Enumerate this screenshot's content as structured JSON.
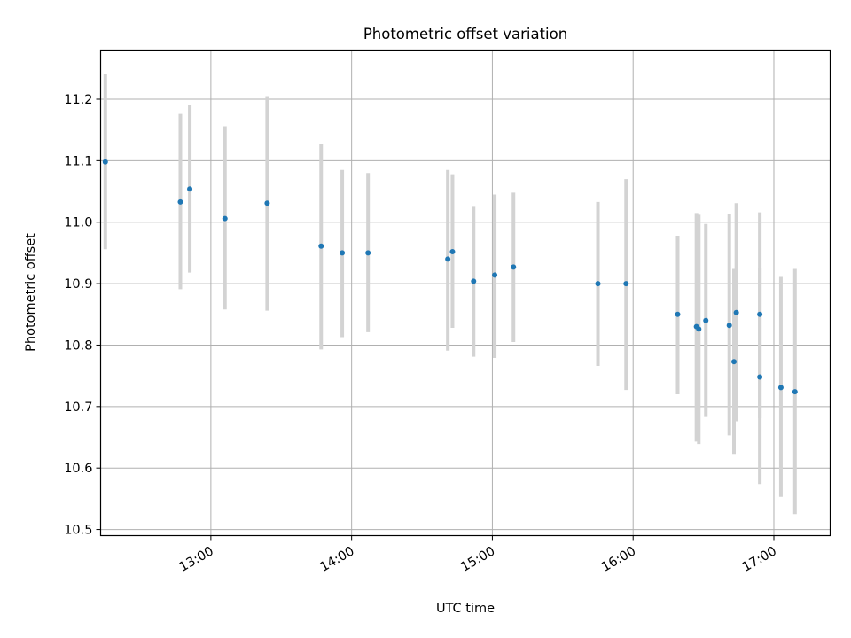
{
  "chart_data": {
    "type": "scatter",
    "title": "Photometric offset variation",
    "xlabel": "UTC time",
    "ylabel": "Photometric offset",
    "x_unit": "UTC time (HH:MM)",
    "xlim": [
      "12:13",
      "17:24"
    ],
    "ylim": [
      10.49,
      11.28
    ],
    "x_ticks": [
      "13:00",
      "14:00",
      "15:00",
      "16:00",
      "17:00"
    ],
    "y_ticks": [
      10.5,
      10.6,
      10.7,
      10.8,
      10.9,
      11.0,
      11.1,
      11.2
    ],
    "grid": true,
    "legend": false,
    "marker_color": "#1f77b4",
    "errorbar_color": "#d3d3d3",
    "points": [
      {
        "x": "12:15",
        "y": 11.098,
        "ylow": 10.956,
        "yhigh": 11.241
      },
      {
        "x": "12:47",
        "y": 11.033,
        "ylow": 10.891,
        "yhigh": 11.176
      },
      {
        "x": "12:51",
        "y": 11.054,
        "ylow": 10.918,
        "yhigh": 11.19
      },
      {
        "x": "13:06",
        "y": 11.006,
        "ylow": 10.858,
        "yhigh": 11.156
      },
      {
        "x": "13:24",
        "y": 11.031,
        "ylow": 10.856,
        "yhigh": 11.205
      },
      {
        "x": "13:47",
        "y": 10.961,
        "ylow": 10.793,
        "yhigh": 11.127
      },
      {
        "x": "13:56",
        "y": 10.95,
        "ylow": 10.813,
        "yhigh": 11.085
      },
      {
        "x": "14:07",
        "y": 10.95,
        "ylow": 10.821,
        "yhigh": 11.08
      },
      {
        "x": "14:41",
        "y": 10.94,
        "ylow": 10.791,
        "yhigh": 11.085
      },
      {
        "x": "14:43",
        "y": 10.952,
        "ylow": 10.828,
        "yhigh": 11.078
      },
      {
        "x": "14:52",
        "y": 10.904,
        "ylow": 10.781,
        "yhigh": 11.025
      },
      {
        "x": "15:01",
        "y": 10.914,
        "ylow": 10.779,
        "yhigh": 11.045
      },
      {
        "x": "15:09",
        "y": 10.927,
        "ylow": 10.805,
        "yhigh": 11.048
      },
      {
        "x": "15:45",
        "y": 10.9,
        "ylow": 10.766,
        "yhigh": 11.033
      },
      {
        "x": "15:57",
        "y": 10.9,
        "ylow": 10.727,
        "yhigh": 11.07
      },
      {
        "x": "16:19",
        "y": 10.85,
        "ylow": 10.72,
        "yhigh": 10.978
      },
      {
        "x": "16:27",
        "y": 10.83,
        "ylow": 10.643,
        "yhigh": 11.015
      },
      {
        "x": "16:28",
        "y": 10.826,
        "ylow": 10.639,
        "yhigh": 11.012
      },
      {
        "x": "16:31",
        "y": 10.84,
        "ylow": 10.683,
        "yhigh": 10.997
      },
      {
        "x": "16:41",
        "y": 10.832,
        "ylow": 10.653,
        "yhigh": 11.013
      },
      {
        "x": "16:43",
        "y": 10.773,
        "ylow": 10.623,
        "yhigh": 10.924
      },
      {
        "x": "16:44",
        "y": 10.853,
        "ylow": 10.676,
        "yhigh": 11.031
      },
      {
        "x": "16:54",
        "y": 10.748,
        "ylow": 10.574,
        "yhigh": 10.925
      },
      {
        "x": "16:54",
        "y": 10.85,
        "ylow": 10.681,
        "yhigh": 11.016
      },
      {
        "x": "17:03",
        "y": 10.731,
        "ylow": 10.553,
        "yhigh": 10.911
      },
      {
        "x": "17:09",
        "y": 10.724,
        "ylow": 10.525,
        "yhigh": 10.924
      }
    ]
  }
}
